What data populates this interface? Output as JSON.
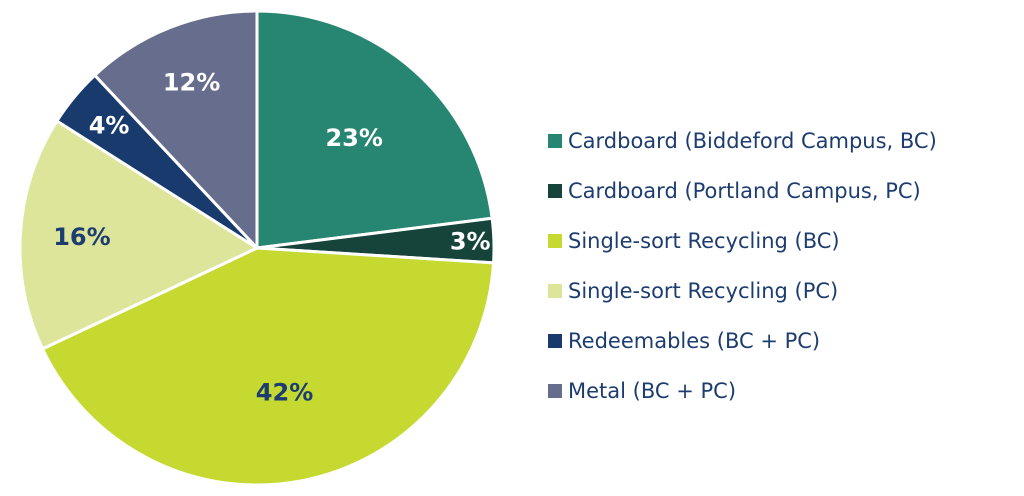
{
  "chart_data": {
    "type": "pie",
    "start_angle_deg": 0,
    "direction": "clockwise",
    "slices": [
      {
        "label": "Cardboard (Biddeford Campus, BC)",
        "value": 23,
        "display": "23%",
        "color": "#268672",
        "label_color": "#ffffff"
      },
      {
        "label": "Cardboard (Portland Campus, PC)",
        "value": 3,
        "display": "3%",
        "color": "#17443a",
        "label_color": "#ffffff"
      },
      {
        "label": "Single-sort Recycling (BC)",
        "value": 42,
        "display": "42%",
        "color": "#c6d931",
        "label_color": "#1d3d70"
      },
      {
        "label": "Single-sort Recycling (PC)",
        "value": 16,
        "display": "16%",
        "color": "#dde59a",
        "label_color": "#1d3d70"
      },
      {
        "label": "Redeemables (BC + PC)",
        "value": 4,
        "display": "4%",
        "color": "#183a6d",
        "label_color": "#ffffff"
      },
      {
        "label": "Metal (BC + PC)",
        "value": 12,
        "display": "12%",
        "color": "#676e8d",
        "label_color": "#ffffff"
      }
    ],
    "legend_position": "right"
  }
}
